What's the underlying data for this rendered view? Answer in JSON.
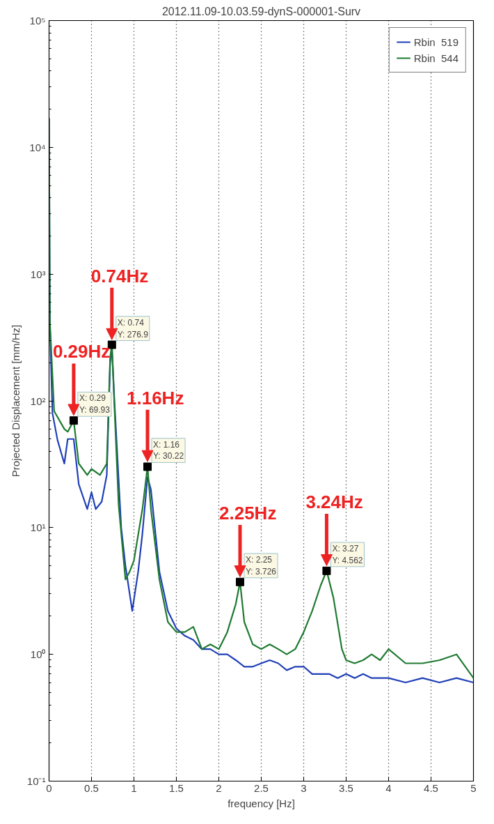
{
  "chart_data": {
    "type": "line",
    "title": "2012.11.09-10.03.59-dynS-000001-Surv",
    "xlabel": "frequency [Hz]",
    "ylabel": "Projected Displacement [mm/Hz]",
    "log": "y",
    "grid": "x",
    "legend": "top right",
    "xlim": [
      0,
      5
    ],
    "xticks": [
      0,
      0.5,
      1,
      1.5,
      2,
      2.5,
      3,
      3.5,
      4,
      4.5,
      5
    ],
    "ylim": [
      0.1,
      100000
    ],
    "yticks": [
      {
        "value": 0.1,
        "label": "10⁻¹"
      },
      {
        "value": 1,
        "label": "10⁰"
      },
      {
        "value": 10,
        "label": "10¹"
      },
      {
        "value": 100,
        "label": "10²"
      },
      {
        "value": 1000,
        "label": "10³"
      },
      {
        "value": 10000,
        "label": "10⁴"
      },
      {
        "value": 100000,
        "label": "10⁵"
      }
    ],
    "series": [
      {
        "name": "Rbin  519",
        "color": "#1f3fb8",
        "x": [
          0,
          0.01,
          0.04,
          0.1,
          0.18,
          0.22,
          0.29,
          0.35,
          0.45,
          0.5,
          0.55,
          0.62,
          0.68,
          0.72,
          0.74,
          0.77,
          0.85,
          0.9,
          0.98,
          1.05,
          1.1,
          1.16,
          1.2,
          1.3,
          1.4,
          1.5,
          1.6,
          1.7,
          1.8,
          1.9,
          2.0,
          2.1,
          2.2,
          2.3,
          2.4,
          2.5,
          2.6,
          2.7,
          2.8,
          2.9,
          3.0,
          3.1,
          3.2,
          3.3,
          3.4,
          3.5,
          3.6,
          3.7,
          3.8,
          4.0,
          4.2,
          4.4,
          4.6,
          4.8,
          5.0
        ],
        "values": [
          17000,
          400,
          80,
          49,
          32,
          50,
          50,
          22,
          14,
          19,
          14,
          16,
          26,
          200,
          270,
          100,
          10,
          5,
          2.2,
          4.5,
          9,
          25,
          20,
          4.5,
          2.2,
          1.6,
          1.4,
          1.3,
          1.1,
          1.1,
          1.0,
          1.0,
          0.9,
          0.8,
          0.8,
          0.85,
          0.9,
          0.85,
          0.75,
          0.8,
          0.8,
          0.7,
          0.7,
          0.7,
          0.65,
          0.7,
          0.65,
          0.7,
          0.65,
          0.65,
          0.6,
          0.65,
          0.6,
          0.65,
          0.6
        ]
      },
      {
        "name": "Rbin  544",
        "color": "#1e7a30",
        "x": [
          0,
          0.01,
          0.06,
          0.18,
          0.22,
          0.29,
          0.35,
          0.45,
          0.5,
          0.6,
          0.68,
          0.72,
          0.74,
          0.77,
          0.82,
          0.9,
          0.95,
          1.0,
          1.1,
          1.16,
          1.2,
          1.3,
          1.4,
          1.5,
          1.6,
          1.7,
          1.8,
          1.9,
          2.0,
          2.1,
          2.2,
          2.25,
          2.3,
          2.4,
          2.5,
          2.6,
          2.7,
          2.8,
          2.9,
          3.0,
          3.1,
          3.2,
          3.27,
          3.35,
          3.45,
          3.5,
          3.6,
          3.7,
          3.8,
          3.9,
          4.0,
          4.2,
          4.4,
          4.6,
          4.8,
          5.0
        ],
        "values": [
          17000,
          420,
          83,
          60,
          57,
          69.93,
          32,
          26,
          29,
          26,
          32,
          220,
          276.9,
          91,
          15,
          3.9,
          4.5,
          5.5,
          14,
          30.22,
          14,
          3.9,
          1.8,
          1.5,
          1.5,
          1.65,
          1.1,
          1.2,
          1.1,
          1.5,
          2.5,
          3.726,
          1.8,
          1.2,
          1.1,
          1.2,
          1.1,
          1.0,
          1.1,
          1.5,
          2.2,
          3.5,
          4.562,
          2.8,
          1.1,
          0.9,
          0.85,
          0.9,
          1.0,
          0.9,
          1.1,
          0.85,
          0.85,
          0.9,
          1.0,
          0.65
        ]
      },
      {
        "type": "scatter",
        "marker": "square",
        "color": "#000000",
        "x": [
          0.29,
          0.74,
          1.16,
          2.25,
          3.27
        ],
        "values": [
          69.93,
          276.9,
          30.22,
          3.726,
          4.562
        ]
      }
    ],
    "annotations": [
      {
        "text": "X: 0.29\nY: 69.93",
        "x": 0.29,
        "y": 69.93
      },
      {
        "text": "X: 0.74\nY: 276.9",
        "x": 0.74,
        "y": 276.9
      },
      {
        "text": "X: 1.16\nY: 30.22",
        "x": 1.16,
        "y": 30.22
      },
      {
        "text": "X: 2.25\nY: 3.726",
        "x": 2.25,
        "y": 3.726
      },
      {
        "text": "X: 3.27\nY: 4.562",
        "x": 3.27,
        "y": 4.562
      },
      {
        "text": "0.29Hz",
        "x": 0.29,
        "y": 69.93
      },
      {
        "text": "0.74Hz",
        "x": 0.74,
        "y": 276.9
      },
      {
        "text": "1.16Hz",
        "x": 1.16,
        "y": 30.22
      },
      {
        "text": "2.25Hz",
        "x": 2.25,
        "y": 3.726
      },
      {
        "text": "3.24Hz",
        "x": 3.27,
        "y": 4.562
      }
    ]
  }
}
